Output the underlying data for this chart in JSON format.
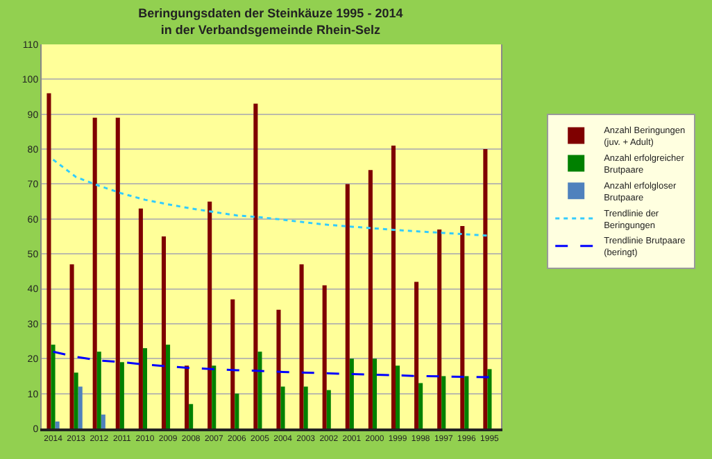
{
  "chart_data": {
    "type": "bar",
    "title": "Beringungsdaten der Steinkäuze 1995 - 2014\nin der Verbandsgemeinde Rhein-Selz",
    "categories": [
      "2014",
      "2013",
      "2012",
      "2011",
      "2010",
      "2009",
      "2008",
      "2007",
      "2006",
      "2005",
      "2004",
      "2003",
      "2002",
      "2001",
      "2000",
      "1999",
      "1998",
      "1997",
      "1996",
      "1995"
    ],
    "series": [
      {
        "name": "Anzahl Beringungen (juv. + Adult)",
        "color": "#7f0000",
        "values": [
          96,
          47,
          89,
          89,
          63,
          55,
          18,
          65,
          37,
          93,
          34,
          47,
          41,
          70,
          74,
          81,
          42,
          57,
          58,
          80
        ]
      },
      {
        "name": "Anzahl erfolgreicher Brutpaare",
        "color": "#008000",
        "values": [
          24,
          16,
          22,
          19,
          23,
          24,
          7,
          18,
          10,
          22,
          12,
          12,
          11,
          20,
          20,
          18,
          13,
          15,
          15,
          17
        ]
      },
      {
        "name": "Anzahl erfolgloser Brutpaare",
        "color": "#4f81bd",
        "values": [
          2,
          12,
          4,
          null,
          null,
          null,
          null,
          null,
          null,
          null,
          null,
          null,
          null,
          null,
          null,
          null,
          null,
          null,
          null,
          null
        ]
      },
      {
        "name": "Trendlinie der Beringungen",
        "type": "line",
        "color": "#33ccff",
        "line_style": "dotted",
        "values": [
          77,
          72,
          69.5,
          67.3,
          65.5,
          64.2,
          63,
          62,
          61,
          60.5,
          59.8,
          59,
          58.3,
          57.8,
          57.3,
          56.8,
          56.4,
          56,
          55.6,
          55.2
        ]
      },
      {
        "name": "Trendlinie Brutpaare (beringt)",
        "type": "line",
        "color": "#0000ff",
        "line_style": "dashed",
        "values": [
          22,
          20.5,
          19.5,
          19,
          18.3,
          17.8,
          17.3,
          17,
          16.7,
          16.5,
          16.2,
          16,
          15.8,
          15.6,
          15.4,
          15.2,
          15,
          14.9,
          14.8,
          14.7
        ]
      }
    ],
    "ylim": [
      0,
      110
    ],
    "yticks": [
      0,
      10,
      20,
      30,
      40,
      50,
      60,
      70,
      80,
      90,
      100,
      110
    ],
    "grid": "y",
    "legend": "right",
    "marker": "none"
  }
}
